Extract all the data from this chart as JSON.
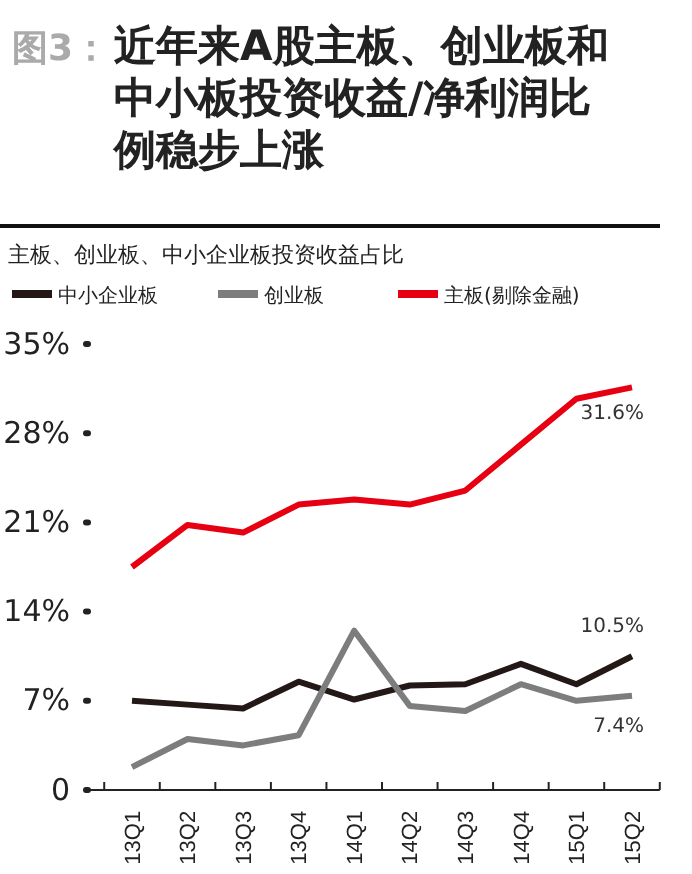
{
  "chart_data": {
    "type": "line",
    "title": "图3：近年来A股主板、创业板和中小板投资收益/净利润比例稳步上涨",
    "subtitle": "主板、创业板、中小企业板投资收益占比",
    "categories": [
      "13Q1",
      "13Q2",
      "13Q3",
      "13Q4",
      "14Q1",
      "14Q2",
      "14Q3",
      "14Q4",
      "15Q1",
      "15Q2"
    ],
    "series": [
      {
        "name": "中小企业板",
        "color": "#231815",
        "values": [
          7.0,
          6.7,
          6.4,
          8.5,
          7.1,
          8.2,
          8.3,
          9.9,
          8.3,
          10.5
        ],
        "value_labels": [
          null,
          null,
          null,
          null,
          null,
          null,
          null,
          null,
          null,
          "10.5%"
        ]
      },
      {
        "name": "创业板",
        "color": "#7d7d7d",
        "values": [
          1.8,
          4.0,
          3.5,
          4.3,
          12.5,
          6.6,
          6.2,
          8.3,
          7.0,
          7.4
        ],
        "value_labels": [
          null,
          null,
          null,
          null,
          null,
          null,
          null,
          null,
          null,
          "7.4%"
        ]
      },
      {
        "name": "主板(剔除金融)",
        "color": "#e60012",
        "values": [
          17.5,
          20.8,
          20.2,
          22.4,
          22.8,
          22.4,
          23.5,
          27.1,
          30.7,
          31.6
        ],
        "value_labels": [
          null,
          null,
          null,
          null,
          null,
          null,
          null,
          null,
          null,
          "31.6%"
        ]
      }
    ],
    "ylim": [
      0,
      35
    ],
    "yticks": [
      {
        "value": 0,
        "label": "0"
      },
      {
        "value": 7,
        "label": "7%"
      },
      {
        "value": 14,
        "label": "14%"
      },
      {
        "value": 21,
        "label": "21%"
      },
      {
        "value": 28,
        "label": "28%"
      },
      {
        "value": 35,
        "label": "35%"
      }
    ],
    "legend": "top left",
    "grid": false,
    "marker": "none",
    "line_style": "solid"
  }
}
